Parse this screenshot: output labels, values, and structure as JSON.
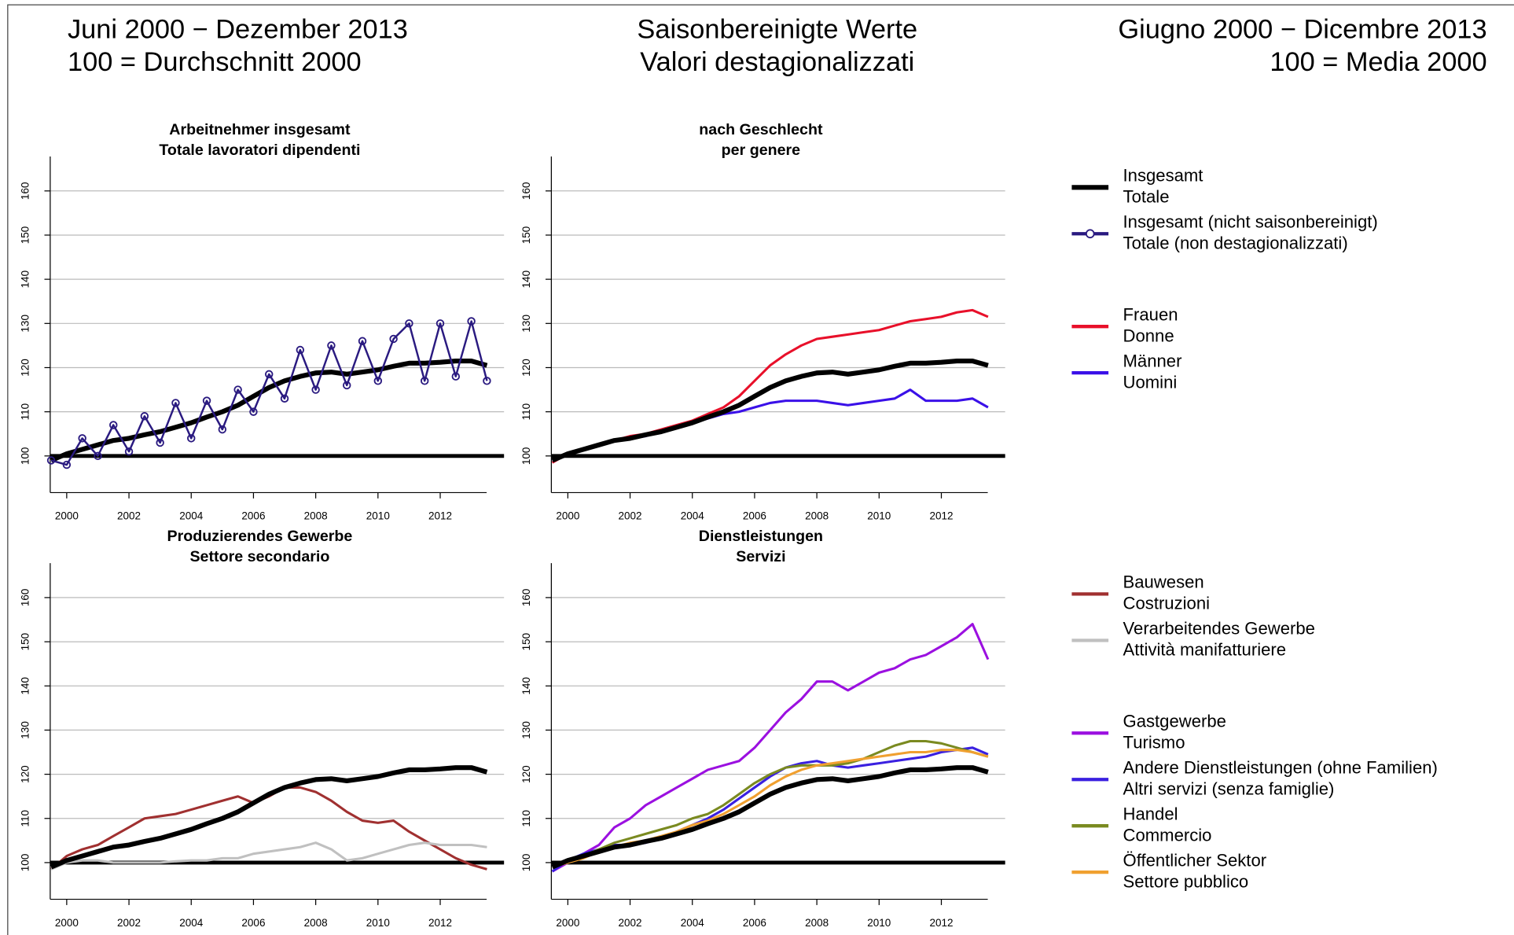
{
  "header": {
    "left": [
      "Juni 2000 − Dezember 2013",
      "100 = Durchschnitt 2000"
    ],
    "center": [
      "Saisonbereinigte Werte",
      "Valori destagionalizzati"
    ],
    "right": [
      "Giugno 2000 − Dicembre 2013",
      "100 = Media 2000"
    ]
  },
  "chart_data": [
    {
      "type": "line",
      "title": [
        "Arbeitnehmer insgesamt",
        "Totale lavoratori dipendenti"
      ],
      "x": [
        1999.5,
        2000,
        2000.5,
        2001,
        2001.5,
        2002,
        2002.5,
        2003,
        2003.5,
        2004,
        2004.5,
        2005,
        2005.5,
        2006,
        2006.5,
        2007,
        2007.5,
        2008,
        2008.5,
        2009,
        2009.5,
        2010,
        2010.5,
        2011,
        2011.5,
        2012,
        2012.5,
        2013,
        2013.5
      ],
      "xlim": [
        1999.47,
        2014.05
      ],
      "xticks": [
        2000,
        2002,
        2004,
        2006,
        2008,
        2010,
        2012
      ],
      "ylim": [
        91.7,
        167.8
      ],
      "yticks": [
        100,
        110,
        120,
        130,
        140,
        150,
        160
      ],
      "grid": true,
      "hline": 100,
      "series": [
        {
          "name": [
            "Insgesamt",
            "Totale"
          ],
          "color": "#000000",
          "line_width": 5,
          "values": [
            99,
            100.5,
            101.5,
            102.5,
            103.5,
            104,
            104.8,
            105.5,
            106.5,
            107.5,
            108.8,
            110,
            111.5,
            113.5,
            115.5,
            117,
            118,
            118.8,
            119,
            118.5,
            119,
            119.5,
            120.3,
            121,
            121,
            121.2,
            121.5,
            121.5,
            120.5
          ]
        },
        {
          "name": [
            "Insgesamt (nicht saisonbereinigt)",
            "Totale (non destagionalizzati)"
          ],
          "color": "#2a1a80",
          "line_width": 2,
          "marker": "circle",
          "values": [
            99,
            98,
            104,
            100,
            107,
            101,
            109,
            103,
            112,
            104,
            112.5,
            106,
            115,
            110,
            118.5,
            113,
            124,
            115,
            125,
            116,
            126,
            117,
            126.5,
            130,
            117,
            130,
            118,
            130.5,
            117
          ]
        }
      ]
    },
    {
      "type": "line",
      "title": [
        "nach Geschlecht",
        "per genere"
      ],
      "x": [
        1999.5,
        2000,
        2000.5,
        2001,
        2001.5,
        2002,
        2002.5,
        2003,
        2003.5,
        2004,
        2004.5,
        2005,
        2005.5,
        2006,
        2006.5,
        2007,
        2007.5,
        2008,
        2008.5,
        2009,
        2009.5,
        2010,
        2010.5,
        2011,
        2011.5,
        2012,
        2012.5,
        2013,
        2013.5
      ],
      "xlim": [
        1999.47,
        2014.05
      ],
      "xticks": [
        2000,
        2002,
        2004,
        2006,
        2008,
        2010,
        2012
      ],
      "ylim": [
        91.7,
        167.8
      ],
      "yticks": [
        100,
        110,
        120,
        130,
        140,
        150,
        160
      ],
      "grid": true,
      "hline": 100,
      "series": [
        {
          "name": [
            "Frauen",
            "Donne"
          ],
          "color": "#e8102a",
          "line_width": 2.5,
          "values": [
            98.5,
            100.5,
            101.5,
            102.5,
            103.5,
            104.5,
            105,
            106,
            107,
            108,
            109.5,
            111,
            113.5,
            117,
            120.5,
            123,
            125,
            126.5,
            127,
            127.5,
            128,
            128.5,
            129.5,
            130.5,
            131,
            131.5,
            132.5,
            133,
            131.5
          ]
        },
        {
          "name": [
            "Männer",
            "Uomini"
          ],
          "color": "#3a10e8",
          "line_width": 2.5,
          "values": [
            99,
            100.5,
            101.5,
            102.5,
            103.5,
            104,
            104.5,
            105.5,
            106.5,
            107.5,
            108.5,
            109.5,
            110,
            111,
            112,
            112.5,
            112.5,
            112.5,
            112,
            111.5,
            112,
            112.5,
            113,
            115,
            112.5,
            112.5,
            112.5,
            113,
            111
          ]
        },
        {
          "color": "#000000",
          "line_width": 5,
          "values": [
            99,
            100.5,
            101.5,
            102.5,
            103.5,
            104,
            104.8,
            105.5,
            106.5,
            107.5,
            108.8,
            110,
            111.5,
            113.5,
            115.5,
            117,
            118,
            118.8,
            119,
            118.5,
            119,
            119.5,
            120.3,
            121,
            121,
            121.2,
            121.5,
            121.5,
            120.5
          ]
        }
      ]
    },
    {
      "type": "line",
      "title": [
        "Produzierendes Gewerbe",
        "Settore secondario"
      ],
      "x": [
        1999.5,
        2000,
        2000.5,
        2001,
        2001.5,
        2002,
        2002.5,
        2003,
        2003.5,
        2004,
        2004.5,
        2005,
        2005.5,
        2006,
        2006.5,
        2007,
        2007.5,
        2008,
        2008.5,
        2009,
        2009.5,
        2010,
        2010.5,
        2011,
        2011.5,
        2012,
        2012.5,
        2013,
        2013.5
      ],
      "xlim": [
        1999.47,
        2014.05
      ],
      "xticks": [
        2000,
        2002,
        2004,
        2006,
        2008,
        2010,
        2012
      ],
      "ylim": [
        91.7,
        167.8
      ],
      "yticks": [
        100,
        110,
        120,
        130,
        140,
        150,
        160
      ],
      "grid": true,
      "hline": 100,
      "series": [
        {
          "name": [
            "Bauwesen",
            "Costruzioni"
          ],
          "color": "#a03030",
          "line_width": 2.5,
          "values": [
            98.5,
            101.5,
            103,
            104,
            106,
            108,
            110,
            110.5,
            111,
            112,
            113,
            114,
            115,
            113.5,
            115,
            117,
            117,
            116,
            114,
            111.5,
            109.5,
            109,
            109.5,
            107,
            105,
            103,
            101,
            99.5,
            98.5
          ]
        },
        {
          "name": [
            "Verarbeitendes Gewerbe",
            "Attività manifatturiere"
          ],
          "color": "#c0c0c0",
          "line_width": 2.5,
          "values": [
            98.5,
            100,
            100.5,
            100.5,
            100,
            100,
            100,
            100,
            100.3,
            100.5,
            100.5,
            101,
            101,
            102,
            102.5,
            103,
            103.5,
            104.5,
            103,
            100.5,
            101,
            102,
            103,
            104,
            104.5,
            104,
            104,
            104,
            103.5
          ]
        },
        {
          "color": "#000000",
          "line_width": 5,
          "values": [
            99,
            100.5,
            101.5,
            102.5,
            103.5,
            104,
            104.8,
            105.5,
            106.5,
            107.5,
            108.8,
            110,
            111.5,
            113.5,
            115.5,
            117,
            118,
            118.8,
            119,
            118.5,
            119,
            119.5,
            120.3,
            121,
            121,
            121.2,
            121.5,
            121.5,
            120.5
          ]
        }
      ]
    },
    {
      "type": "line",
      "title": [
        "Dienstleistungen",
        "Servizi"
      ],
      "x": [
        1999.5,
        2000,
        2000.5,
        2001,
        2001.5,
        2002,
        2002.5,
        2003,
        2003.5,
        2004,
        2004.5,
        2005,
        2005.5,
        2006,
        2006.5,
        2007,
        2007.5,
        2008,
        2008.5,
        2009,
        2009.5,
        2010,
        2010.5,
        2011,
        2011.5,
        2012,
        2012.5,
        2013,
        2013.5
      ],
      "xlim": [
        1999.47,
        2014.05
      ],
      "xticks": [
        2000,
        2002,
        2004,
        2006,
        2008,
        2010,
        2012
      ],
      "ylim": [
        91.7,
        167.8
      ],
      "yticks": [
        100,
        110,
        120,
        130,
        140,
        150,
        160
      ],
      "grid": true,
      "hline": 100,
      "series": [
        {
          "name": [
            "Gastgewerbe",
            "Turismo"
          ],
          "color": "#9b10e0",
          "line_width": 2.5,
          "values": [
            98,
            100,
            102,
            104,
            108,
            110,
            113,
            115,
            117,
            119,
            121,
            122,
            123,
            126,
            130,
            134,
            137,
            141,
            141,
            139,
            141,
            143,
            144,
            146,
            147,
            149,
            151,
            154,
            146
          ]
        },
        {
          "name": [
            "Andere Dienstleistungen (ohne Familien)",
            "Altri servizi (senza famiglie)"
          ],
          "color": "#3a20e0",
          "line_width": 2.5,
          "values": [
            98,
            100.5,
            102,
            103,
            104,
            104,
            104.5,
            105.5,
            107,
            108.5,
            110,
            112,
            114.5,
            117,
            119.5,
            121.5,
            122.5,
            123,
            122,
            121.5,
            122,
            122.5,
            123,
            123.5,
            124,
            125,
            125.5,
            126,
            124.5
          ]
        },
        {
          "name": [
            "Handel",
            "Commercio"
          ],
          "color": "#7a8a20",
          "line_width": 2.5,
          "values": [
            99,
            100,
            101.5,
            103,
            104.5,
            105.5,
            106.5,
            107.5,
            108.5,
            110,
            111,
            113,
            115.5,
            118,
            120,
            121.5,
            122,
            122,
            122,
            122.5,
            123.5,
            125,
            126.5,
            127.5,
            127.5,
            127,
            126,
            125,
            124
          ]
        },
        {
          "name": [
            "Öffentlicher Sektor",
            "Settore pubblico"
          ],
          "color": "#f0a030",
          "line_width": 2.5,
          "values": [
            99,
            100,
            101,
            102.5,
            103.5,
            104.5,
            105,
            106,
            107,
            108.5,
            109.5,
            111,
            113,
            115,
            117.5,
            119.5,
            121,
            122,
            122.5,
            123,
            123.5,
            124,
            124.5,
            125,
            125,
            125.5,
            125.5,
            125,
            124
          ]
        },
        {
          "color": "#000000",
          "line_width": 5,
          "values": [
            99,
            100.5,
            101.5,
            102.5,
            103.5,
            104,
            104.8,
            105.5,
            106.5,
            107.5,
            108.8,
            110,
            111.5,
            113.5,
            115.5,
            117,
            118,
            118.8,
            119,
            118.5,
            119,
            119.5,
            120.3,
            121,
            121,
            121.2,
            121.5,
            121.5,
            120.5
          ]
        }
      ]
    }
  ]
}
